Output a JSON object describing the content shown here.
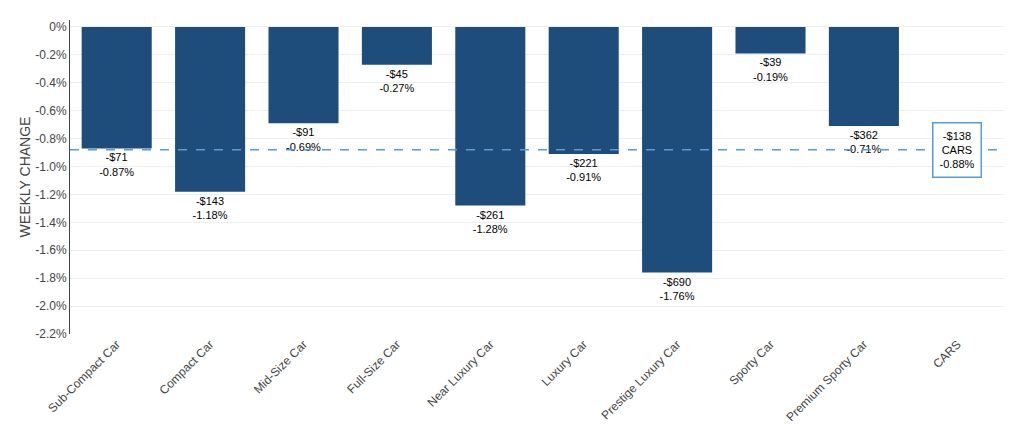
{
  "chart_data": {
    "type": "bar",
    "y_label": "WEEKLY CHANGE",
    "categories": [
      "Sub-Compact Car",
      "Compact Car",
      "Mid-Size Car",
      "Full-Size Car",
      "Near Luxury Car",
      "Luxury Car",
      "Prestige Luxury Car",
      "Sporty Car",
      "Premium Sporty Car",
      "CARS"
    ],
    "values": [
      -0.87,
      -1.18,
      -0.69,
      -0.27,
      -1.28,
      -0.91,
      -1.76,
      -0.19,
      -0.71,
      null
    ],
    "value_labels": [
      "-$71\n-0.87%",
      "-$143\n-1.18%",
      "-$91\n-0.69%",
      "-$45\n-0.27%",
      "-$261\n-1.28%",
      "-$221\n-0.91%",
      "-$690\n-1.76%",
      "-$39\n-0.19%",
      "-$362\n-0.71%",
      null
    ],
    "data_labels": true,
    "color": "#1e4d7b",
    "reference_line": {
      "value": -0.88,
      "color": "#5b9bd5",
      "line_style": "dashed"
    },
    "annotations": [
      {
        "text": "-$138\nCARS\n-0.88%",
        "x": "CARS"
      }
    ],
    "ylim": [
      -2.2,
      0.05
    ],
    "yticks": [
      {
        "value": 0.0,
        "label": "0%"
      },
      {
        "value": -0.2,
        "label": "-0.2%"
      },
      {
        "value": -0.4,
        "label": "-0.4%"
      },
      {
        "value": -0.6,
        "label": "-0.6%"
      },
      {
        "value": -0.8,
        "label": "-0.8%"
      },
      {
        "value": -1.0,
        "label": "-1.0%"
      },
      {
        "value": -1.2,
        "label": "-1.2%"
      },
      {
        "value": -1.4,
        "label": "-1.4%"
      },
      {
        "value": -1.6,
        "label": "-1.6%"
      },
      {
        "value": -1.8,
        "label": "-1.8%"
      },
      {
        "value": -2.0,
        "label": "-2.0%"
      },
      {
        "value": -2.2,
        "label": "-2.2%"
      }
    ],
    "grid": true
  }
}
